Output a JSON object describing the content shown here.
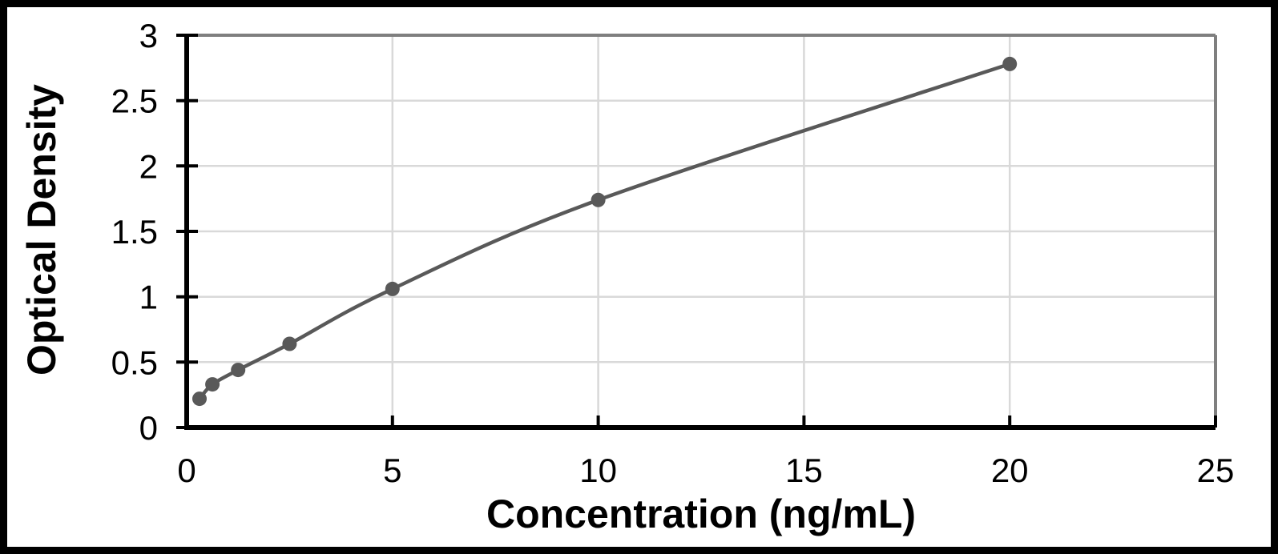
{
  "chart_data": {
    "type": "scatter",
    "line_style": "smooth-with-markers",
    "title": "",
    "xlabel": "Concentration (ng/mL)",
    "ylabel": "Optical Density",
    "x": [
      0.312,
      0.625,
      1.25,
      2.5,
      5,
      10,
      20
    ],
    "y": [
      0.22,
      0.33,
      0.44,
      0.64,
      1.06,
      1.74,
      2.78
    ],
    "xlim": [
      0,
      25
    ],
    "ylim": [
      0,
      3
    ],
    "x_ticks": [
      0,
      5,
      10,
      15,
      20,
      25
    ],
    "y_ticks": [
      0,
      0.5,
      1,
      1.5,
      2,
      2.5,
      3
    ],
    "x_tick_labels": [
      "0",
      "5",
      "10",
      "15",
      "20",
      "25"
    ],
    "y_tick_labels": [
      "0",
      "0.5",
      "1",
      "1.5",
      "2",
      "2.5",
      "3"
    ],
    "grid": true,
    "legend": "none",
    "colors": {
      "series_line": "#595959",
      "marker": "#595959",
      "gridline": "#d9d9d9",
      "plot_border": "#7f7f7f",
      "axis": "#000000",
      "text": "#000000",
      "background": "#ffffff",
      "frame": "#000000"
    }
  }
}
